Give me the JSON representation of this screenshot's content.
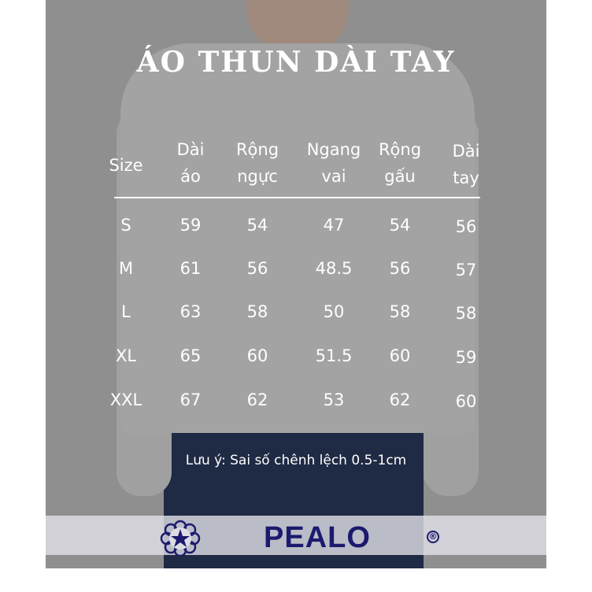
{
  "title": "ÁO THUN DÀI TAY",
  "table": {
    "headers": [
      [
        "Size",
        ""
      ],
      [
        "Dài",
        "áo"
      ],
      [
        "Rộng",
        "ngực"
      ],
      [
        "Ngang",
        "vai"
      ],
      [
        "Rộng",
        "gấu"
      ],
      [
        "Dài",
        "tay"
      ]
    ],
    "rows": [
      [
        "S",
        "59",
        "54",
        "47",
        "54",
        "56"
      ],
      [
        "M",
        "61",
        "56",
        "48.5",
        "56",
        "57"
      ],
      [
        "L",
        "63",
        "58",
        "50",
        "58",
        "58"
      ],
      [
        "XL",
        "65",
        "60",
        "51.5",
        "60",
        "59"
      ],
      [
        "XXL",
        "67",
        "62",
        "53",
        "62",
        "60"
      ]
    ]
  },
  "note": "Lưu ý: Sai số chênh lệch 0.5-1cm",
  "brand": {
    "logo": "PEALO",
    "registered": "®",
    "color": "#1c1a6e",
    "icon": "flower-star-icon"
  }
}
